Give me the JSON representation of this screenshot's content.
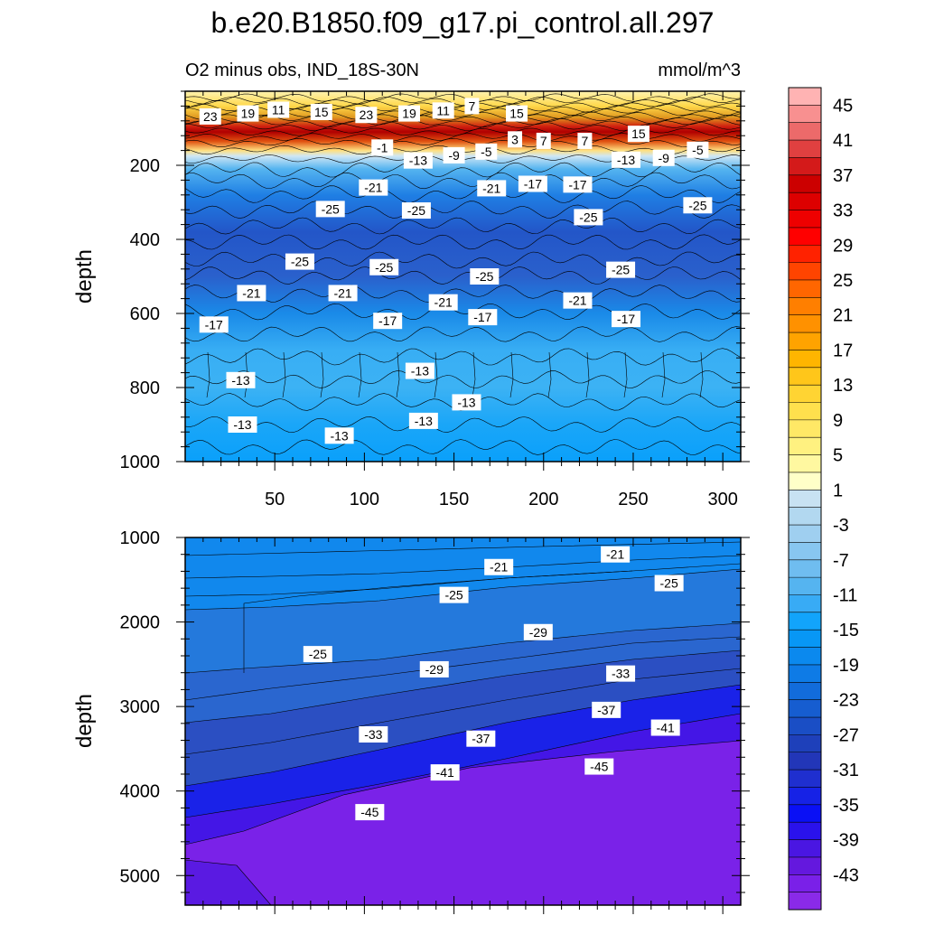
{
  "figure": {
    "title": "b.e20.B1850.f09_g17.pi_control.all.297",
    "left_subtitle": "O2 minus obs, IND_18S-30N",
    "right_subtitle": "mmol/m^3"
  },
  "chart_data": [
    {
      "type": "heatmap",
      "panel": "upper",
      "ylabel": "depth",
      "xlabel": "",
      "xlim": [
        0,
        310
      ],
      "ylim": [
        1000,
        0
      ],
      "x_ticks": [
        50,
        100,
        150,
        200,
        250,
        300
      ],
      "y_ticks": [
        200,
        400,
        600,
        800,
        1000
      ],
      "contour_labels": [
        {
          "text": "23",
          "x": 14,
          "y": 68
        },
        {
          "text": "19",
          "x": 35,
          "y": 60
        },
        {
          "text": "11",
          "x": 52,
          "y": 50
        },
        {
          "text": "15",
          "x": 76,
          "y": 56
        },
        {
          "text": "23",
          "x": 101,
          "y": 64
        },
        {
          "text": "19",
          "x": 125,
          "y": 60
        },
        {
          "text": "11",
          "x": 144,
          "y": 52
        },
        {
          "text": "7",
          "x": 160,
          "y": 40
        },
        {
          "text": "15",
          "x": 185,
          "y": 60
        },
        {
          "text": "-1",
          "x": 110,
          "y": 152
        },
        {
          "text": "3",
          "x": 184,
          "y": 130
        },
        {
          "text": "7",
          "x": 200,
          "y": 134
        },
        {
          "text": "7",
          "x": 223,
          "y": 134
        },
        {
          "text": "15",
          "x": 253,
          "y": 115
        },
        {
          "text": "-13",
          "x": 130,
          "y": 187
        },
        {
          "text": "-9",
          "x": 150,
          "y": 173
        },
        {
          "text": "-5",
          "x": 168,
          "y": 163
        },
        {
          "text": "-13",
          "x": 246,
          "y": 185
        },
        {
          "text": "-9",
          "x": 267,
          "y": 180
        },
        {
          "text": "-5",
          "x": 286,
          "y": 158
        },
        {
          "text": "-21",
          "x": 105,
          "y": 260
        },
        {
          "text": "-21",
          "x": 171,
          "y": 262
        },
        {
          "text": "-17",
          "x": 194,
          "y": 250
        },
        {
          "text": "-17",
          "x": 219,
          "y": 252
        },
        {
          "text": "-25",
          "x": 81,
          "y": 318
        },
        {
          "text": "-25",
          "x": 129,
          "y": 322
        },
        {
          "text": "-25",
          "x": 225,
          "y": 340
        },
        {
          "text": "-25",
          "x": 286,
          "y": 308
        },
        {
          "text": "-25",
          "x": 64,
          "y": 460
        },
        {
          "text": "-25",
          "x": 111,
          "y": 475
        },
        {
          "text": "-25",
          "x": 167,
          "y": 500
        },
        {
          "text": "-25",
          "x": 243,
          "y": 482
        },
        {
          "text": "-21",
          "x": 37,
          "y": 545
        },
        {
          "text": "-21",
          "x": 88,
          "y": 545
        },
        {
          "text": "-21",
          "x": 144,
          "y": 570
        },
        {
          "text": "-21",
          "x": 219,
          "y": 565
        },
        {
          "text": "-17",
          "x": 16,
          "y": 630
        },
        {
          "text": "-17",
          "x": 113,
          "y": 620
        },
        {
          "text": "-17",
          "x": 166,
          "y": 610
        },
        {
          "text": "-17",
          "x": 246,
          "y": 615
        },
        {
          "text": "-13",
          "x": 31,
          "y": 780
        },
        {
          "text": "-13",
          "x": 131,
          "y": 755
        },
        {
          "text": "-13",
          "x": 157,
          "y": 840
        },
        {
          "text": "-13",
          "x": 32,
          "y": 900
        },
        {
          "text": "-13",
          "x": 86,
          "y": 930
        },
        {
          "text": "-13",
          "x": 133,
          "y": 890
        }
      ]
    },
    {
      "type": "heatmap",
      "panel": "lower",
      "ylabel": "depth",
      "xlabel": "",
      "xlim": [
        0,
        310
      ],
      "ylim": [
        5350,
        1000
      ],
      "x_ticks": [
        50,
        100,
        150,
        200,
        250,
        300
      ],
      "y_ticks": [
        1000,
        2000,
        3000,
        4000,
        5000
      ],
      "contour_labels": [
        {
          "text": "-21",
          "x": 175,
          "y": 1350
        },
        {
          "text": "-21",
          "x": 240,
          "y": 1200
        },
        {
          "text": "-25",
          "x": 270,
          "y": 1540
        },
        {
          "text": "-25",
          "x": 150,
          "y": 1680
        },
        {
          "text": "-29",
          "x": 197,
          "y": 2120
        },
        {
          "text": "-25",
          "x": 74,
          "y": 2380
        },
        {
          "text": "-29",
          "x": 139,
          "y": 2560
        },
        {
          "text": "-33",
          "x": 243,
          "y": 2610
        },
        {
          "text": "-37",
          "x": 235,
          "y": 3040
        },
        {
          "text": "-33",
          "x": 105,
          "y": 3330
        },
        {
          "text": "-37",
          "x": 165,
          "y": 3380
        },
        {
          "text": "-41",
          "x": 268,
          "y": 3250
        },
        {
          "text": "-41",
          "x": 145,
          "y": 3780
        },
        {
          "text": "-45",
          "x": 231,
          "y": 3710
        },
        {
          "text": "-45",
          "x": 103,
          "y": 4250
        }
      ]
    }
  ],
  "colorbar": {
    "levels": [
      45,
      43,
      41,
      39,
      37,
      35,
      33,
      31,
      29,
      27,
      25,
      23,
      21,
      19,
      17,
      15,
      13,
      11,
      9,
      7,
      5,
      3,
      1,
      -1,
      -3,
      -5,
      -7,
      -9,
      -11,
      -13,
      -15,
      -17,
      -19,
      -21,
      -23,
      -25,
      -27,
      -29,
      -31,
      -33,
      -35,
      -37,
      -39,
      -41,
      -43,
      -45
    ],
    "colors": [
      "#ffb3b3",
      "#f89090",
      "#ec6a6a",
      "#e04040",
      "#d41a1a",
      "#cc0000",
      "#dd0000",
      "#ee0000",
      "#ff0000",
      "#ff2200",
      "#ff4400",
      "#ff6600",
      "#ff7f00",
      "#ff9100",
      "#ffa300",
      "#ffb500",
      "#ffc61a",
      "#ffd433",
      "#ffe04d",
      "#ffe866",
      "#fff180",
      "#fff8a0",
      "#ffffc8",
      "#c8e2f2",
      "#b2d8f0",
      "#9fcff0",
      "#88c6f0",
      "#6fbdf0",
      "#55b4f0",
      "#38abf5",
      "#12a4fb",
      "#0897f5",
      "#0b89ee",
      "#0e7be6",
      "#126cdb",
      "#165dd0",
      "#1a4ec5",
      "#1e40ba",
      "#2236b8",
      "#1f2fcf",
      "#1622e6",
      "#0a10f5",
      "#2a12ec",
      "#4a16e2",
      "#6418de",
      "#7a20e8",
      "#8a2ae8"
    ],
    "labels": [
      "45",
      "41",
      "37",
      "33",
      "29",
      "25",
      "21",
      "17",
      "13",
      "9",
      "5",
      "1",
      "-3",
      "-7",
      "-11",
      "-15",
      "-19",
      "-23",
      "-27",
      "-31",
      "-35",
      "-39",
      "-43"
    ]
  }
}
